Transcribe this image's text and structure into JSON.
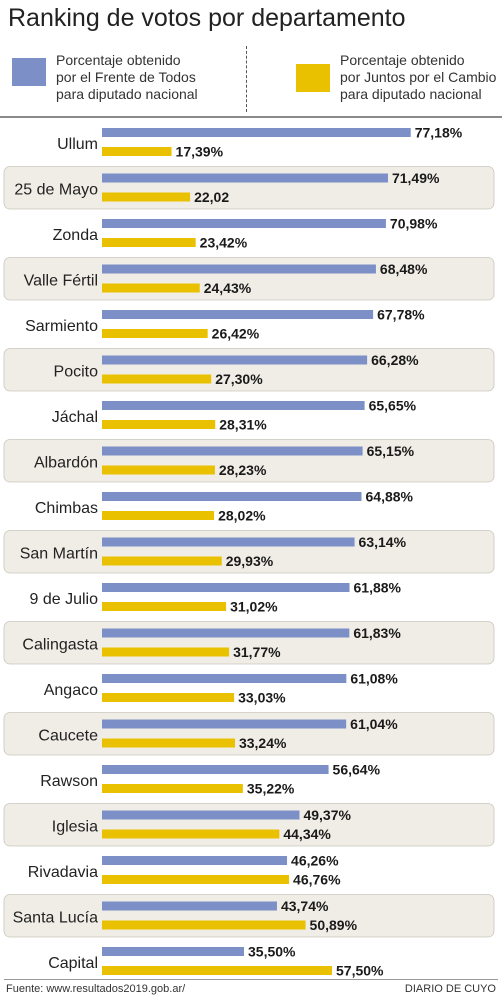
{
  "header": {
    "title": "Ranking de votos por departamento"
  },
  "legend": [
    {
      "lines": [
        "Porcentaje obtenido",
        "por el Frente de Todos",
        "para diputado nacional"
      ],
      "color": "#7c8fc7"
    },
    {
      "lines": [
        "Porcentaje obtenido",
        "por Juntos por el Cambio",
        "para diputado nacional"
      ],
      "color": "#e9c100"
    }
  ],
  "chart_data": {
    "type": "bar",
    "orientation": "horizontal",
    "categories": [
      "Ullum",
      "25 de Mayo",
      "Zonda",
      "Valle Fértil",
      "Sarmiento",
      "Pocito",
      "Jáchal",
      "Albardón",
      "Chimbas",
      "San Martín",
      "9 de Julio",
      "Calingasta",
      "Angaco",
      "Caucete",
      "Rawson",
      "Iglesia",
      "Rivadavia",
      "Santa Lucía",
      "Capital"
    ],
    "series": [
      {
        "name": "Porcentaje obtenido por el Frente de Todos para diputado nacional",
        "color": "#7c8fc7",
        "values": [
          77.18,
          71.49,
          70.98,
          68.48,
          67.78,
          66.28,
          65.65,
          65.15,
          64.88,
          63.14,
          61.88,
          61.83,
          61.08,
          61.04,
          56.64,
          49.37,
          46.26,
          43.74,
          35.5
        ],
        "labels": [
          "77,18%",
          "71,49%",
          "70,98%",
          "68,48%",
          "67,78%",
          "66,28%",
          "65,65%",
          "65,15%",
          "64,88%",
          "63,14%",
          "61,88%",
          "61,83%",
          "61,08%",
          "61,04%",
          "56,64%",
          "49,37%",
          "46,26%",
          "43,74%",
          "35,50%"
        ]
      },
      {
        "name": "Porcentaje obtenido por Juntos por el Cambio para diputado nacional",
        "color": "#e9c100",
        "values": [
          17.39,
          22.02,
          23.42,
          24.43,
          26.42,
          27.3,
          28.31,
          28.23,
          28.02,
          29.93,
          31.02,
          31.77,
          33.03,
          33.24,
          35.22,
          44.34,
          46.76,
          50.89,
          57.5
        ],
        "labels": [
          "17,39%",
          "22,02",
          "23,42%",
          "24,43%",
          "26,42%",
          "27,30%",
          "28,31%",
          "28,23%",
          "28,02%",
          "29,93%",
          "31,02%",
          "31,77%",
          "33,03%",
          "33,24%",
          "35,22%",
          "44,34%",
          "46,76%",
          "50,89%",
          "57,50%"
        ]
      }
    ],
    "shaded_rows": [
      1,
      3,
      5,
      7,
      9,
      11,
      13,
      15,
      17
    ],
    "shade_color": "#f0ede6",
    "grid": false
  },
  "footer": {
    "source": "Fuente: www.resultados2019.gob.ar/",
    "brand": "DIARIO DE CUYO"
  }
}
